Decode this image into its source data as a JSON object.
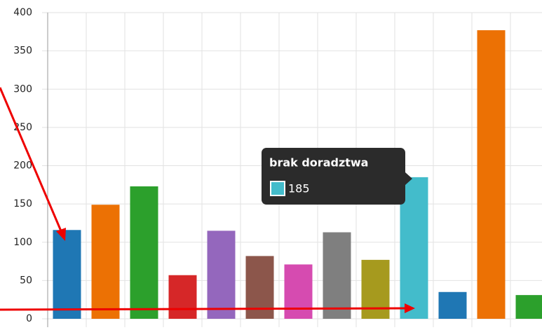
{
  "chart_data": {
    "type": "bar",
    "categories": [
      null,
      null,
      null,
      null,
      null,
      null,
      null,
      null,
      null,
      "brak doradztwa",
      null,
      null,
      null
    ],
    "values": [
      116,
      149,
      173,
      57,
      115,
      82,
      71,
      113,
      77,
      185,
      35,
      377,
      31
    ],
    "colors": [
      "#1f77b4",
      "#ec7104",
      "#2ca02c",
      "#d62728",
      "#9467bd",
      "#8c564b",
      "#d64bb0",
      "#7f7f7f",
      "#a69a1e",
      "#43bccb",
      "#1f77b4",
      "#ec7104",
      "#2ca02c"
    ],
    "ylim": [
      0,
      400
    ],
    "yticks": [
      0,
      50,
      100,
      150,
      200,
      250,
      300,
      350,
      400
    ],
    "grid": true
  }
}
